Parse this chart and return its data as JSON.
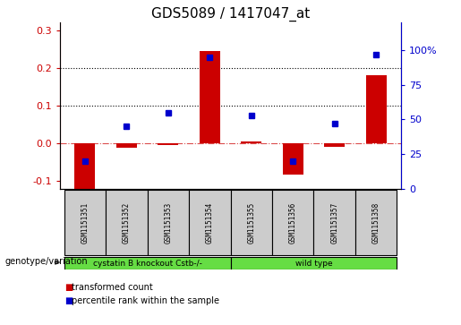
{
  "title": "GDS5089 / 1417047_at",
  "samples": [
    "GSM1151351",
    "GSM1151352",
    "GSM1151353",
    "GSM1151354",
    "GSM1151355",
    "GSM1151356",
    "GSM1151357",
    "GSM1151358"
  ],
  "red_values": [
    -0.122,
    -0.012,
    -0.005,
    0.245,
    0.005,
    -0.082,
    -0.01,
    0.18
  ],
  "blue_values": [
    20,
    45,
    55,
    95,
    53,
    20,
    47,
    97
  ],
  "ylim_left": [
    -0.12,
    0.32
  ],
  "ylim_right": [
    0,
    120
  ],
  "yticks_left": [
    -0.1,
    0.0,
    0.1,
    0.2,
    0.3
  ],
  "yticks_right": [
    0,
    25,
    50,
    75,
    100
  ],
  "ytick_labels_right": [
    "0",
    "25",
    "50",
    "75",
    "100%"
  ],
  "red_color": "#cc0000",
  "blue_color": "#0000cc",
  "dotted_line_y": [
    0.1,
    0.2
  ],
  "dashed_line_y": 0.0,
  "group1_label": "cystatin B knockout Cstb-/-",
  "group2_label": "wild type",
  "group1_indices": [
    0,
    1,
    2,
    3
  ],
  "group2_indices": [
    4,
    5,
    6,
    7
  ],
  "genotype_label": "genotype/variation",
  "legend_red": "transformed count",
  "legend_blue": "percentile rank within the sample",
  "group_color": "#66dd44",
  "sample_box_color": "#cccccc",
  "title_fontsize": 11,
  "tick_fontsize": 8,
  "bar_width": 0.5
}
